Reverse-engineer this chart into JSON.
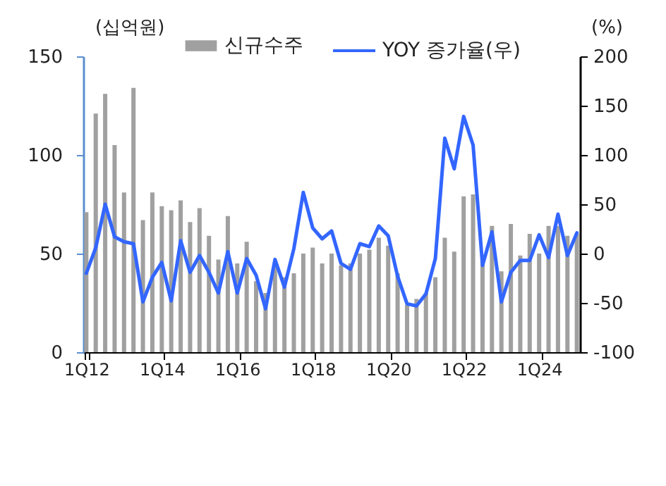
{
  "chart_data": {
    "type": "bar",
    "ylabel": "(십억원)",
    "y2label": "(%)",
    "legend": "top",
    "categories": [
      "1Q12",
      null,
      null,
      null,
      null,
      null,
      null,
      null,
      "1Q14",
      null,
      null,
      null,
      null,
      null,
      null,
      null,
      "1Q16",
      null,
      null,
      null,
      null,
      null,
      null,
      null,
      "1Q18",
      null,
      null,
      null,
      null,
      null,
      null,
      null,
      "1Q20",
      null,
      null,
      null,
      null,
      null,
      null,
      null,
      "1Q22",
      null,
      null,
      null,
      null,
      null,
      null,
      null,
      "1Q24",
      null,
      null,
      null,
      null
    ],
    "ylim": [
      0,
      150
    ],
    "yticks": [
      0,
      50,
      100,
      150
    ],
    "y2lim": [
      -100,
      200
    ],
    "y2ticks": [
      -100,
      -50,
      0,
      50,
      100,
      150,
      200
    ],
    "series": [
      {
        "name": "신규수주",
        "color": "#a0a0a0",
        "values": [
          71,
          121,
          131,
          105,
          81,
          134,
          67,
          81,
          74,
          72,
          77,
          66,
          73,
          59,
          47,
          69,
          45,
          56,
          36,
          30,
          44,
          38,
          40,
          50,
          53,
          45,
          50,
          44,
          45,
          50,
          52,
          58,
          54,
          40,
          24,
          27,
          30,
          38,
          58,
          51,
          79,
          80,
          46,
          64,
          41,
          65,
          49,
          60,
          50,
          64,
          64,
          59,
          60
        ]
      },
      {
        "name": "YOY 증가율(우)",
        "type": "line",
        "axis": "y2",
        "color": "#3366ff",
        "values": [
          -20,
          6,
          50,
          17,
          12,
          10,
          -49,
          -24,
          -9,
          -48,
          13,
          -19,
          -2,
          -19,
          -40,
          2,
          -40,
          -5,
          -22,
          -56,
          -6,
          -34,
          5,
          62,
          26,
          15,
          23,
          -10,
          -16,
          10,
          7,
          28,
          18,
          -23,
          -51,
          -53,
          -41,
          -5,
          117,
          86,
          139,
          110,
          -12,
          22,
          -49,
          -19,
          -7,
          -7,
          19,
          -4,
          40,
          -2,
          21
        ]
      }
    ]
  }
}
